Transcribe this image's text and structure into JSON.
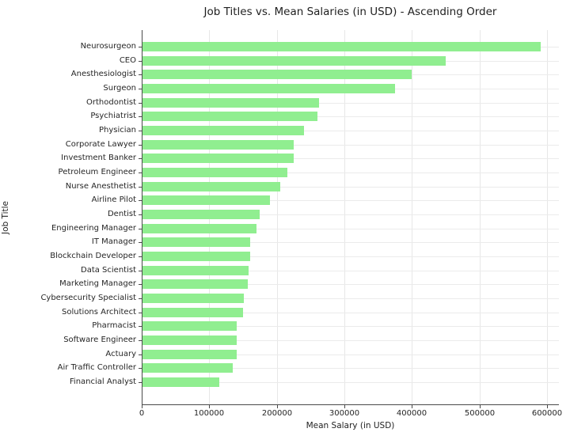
{
  "chart_data": {
    "type": "bar",
    "orientation": "horizontal",
    "title": "Job Titles vs. Mean Salaries (in USD) - Ascending Order",
    "xlabel": "Mean Salary (in USD)",
    "ylabel": "Job Title",
    "sort_order_shown": "descending from top (ascending from bottom)",
    "grid": true,
    "legend": false,
    "bar_color": "#90EE90",
    "xlim": [
      0,
      620000
    ],
    "xticks": [
      0,
      100000,
      200000,
      300000,
      400000,
      500000,
      600000
    ],
    "xtick_labels": [
      "0",
      "100000",
      "200000",
      "300000",
      "400000",
      "500000",
      "600000"
    ],
    "categories": [
      "Neurosurgeon",
      "CEO",
      "Anesthesiologist",
      "Surgeon",
      "Orthodontist",
      "Psychiatrist",
      "Physician",
      "Corporate Lawyer",
      "Investment Banker",
      "Petroleum Engineer",
      "Nurse Anesthetist",
      "Airline Pilot",
      "Dentist",
      "Engineering Manager",
      "IT Manager",
      "Blockchain Developer",
      "Data Scientist",
      "Marketing Manager",
      "Cybersecurity Specialist",
      "Solutions Architect",
      "Pharmacist",
      "Software Engineer",
      "Actuary",
      "Air Traffic Controller",
      "Financial Analyst"
    ],
    "values": [
      590000,
      450000,
      400000,
      375000,
      263000,
      260000,
      240000,
      225000,
      225000,
      215000,
      205000,
      190000,
      175000,
      170000,
      160000,
      160000,
      158000,
      157000,
      151000,
      150000,
      140000,
      140000,
      140000,
      135000,
      115000
    ]
  }
}
